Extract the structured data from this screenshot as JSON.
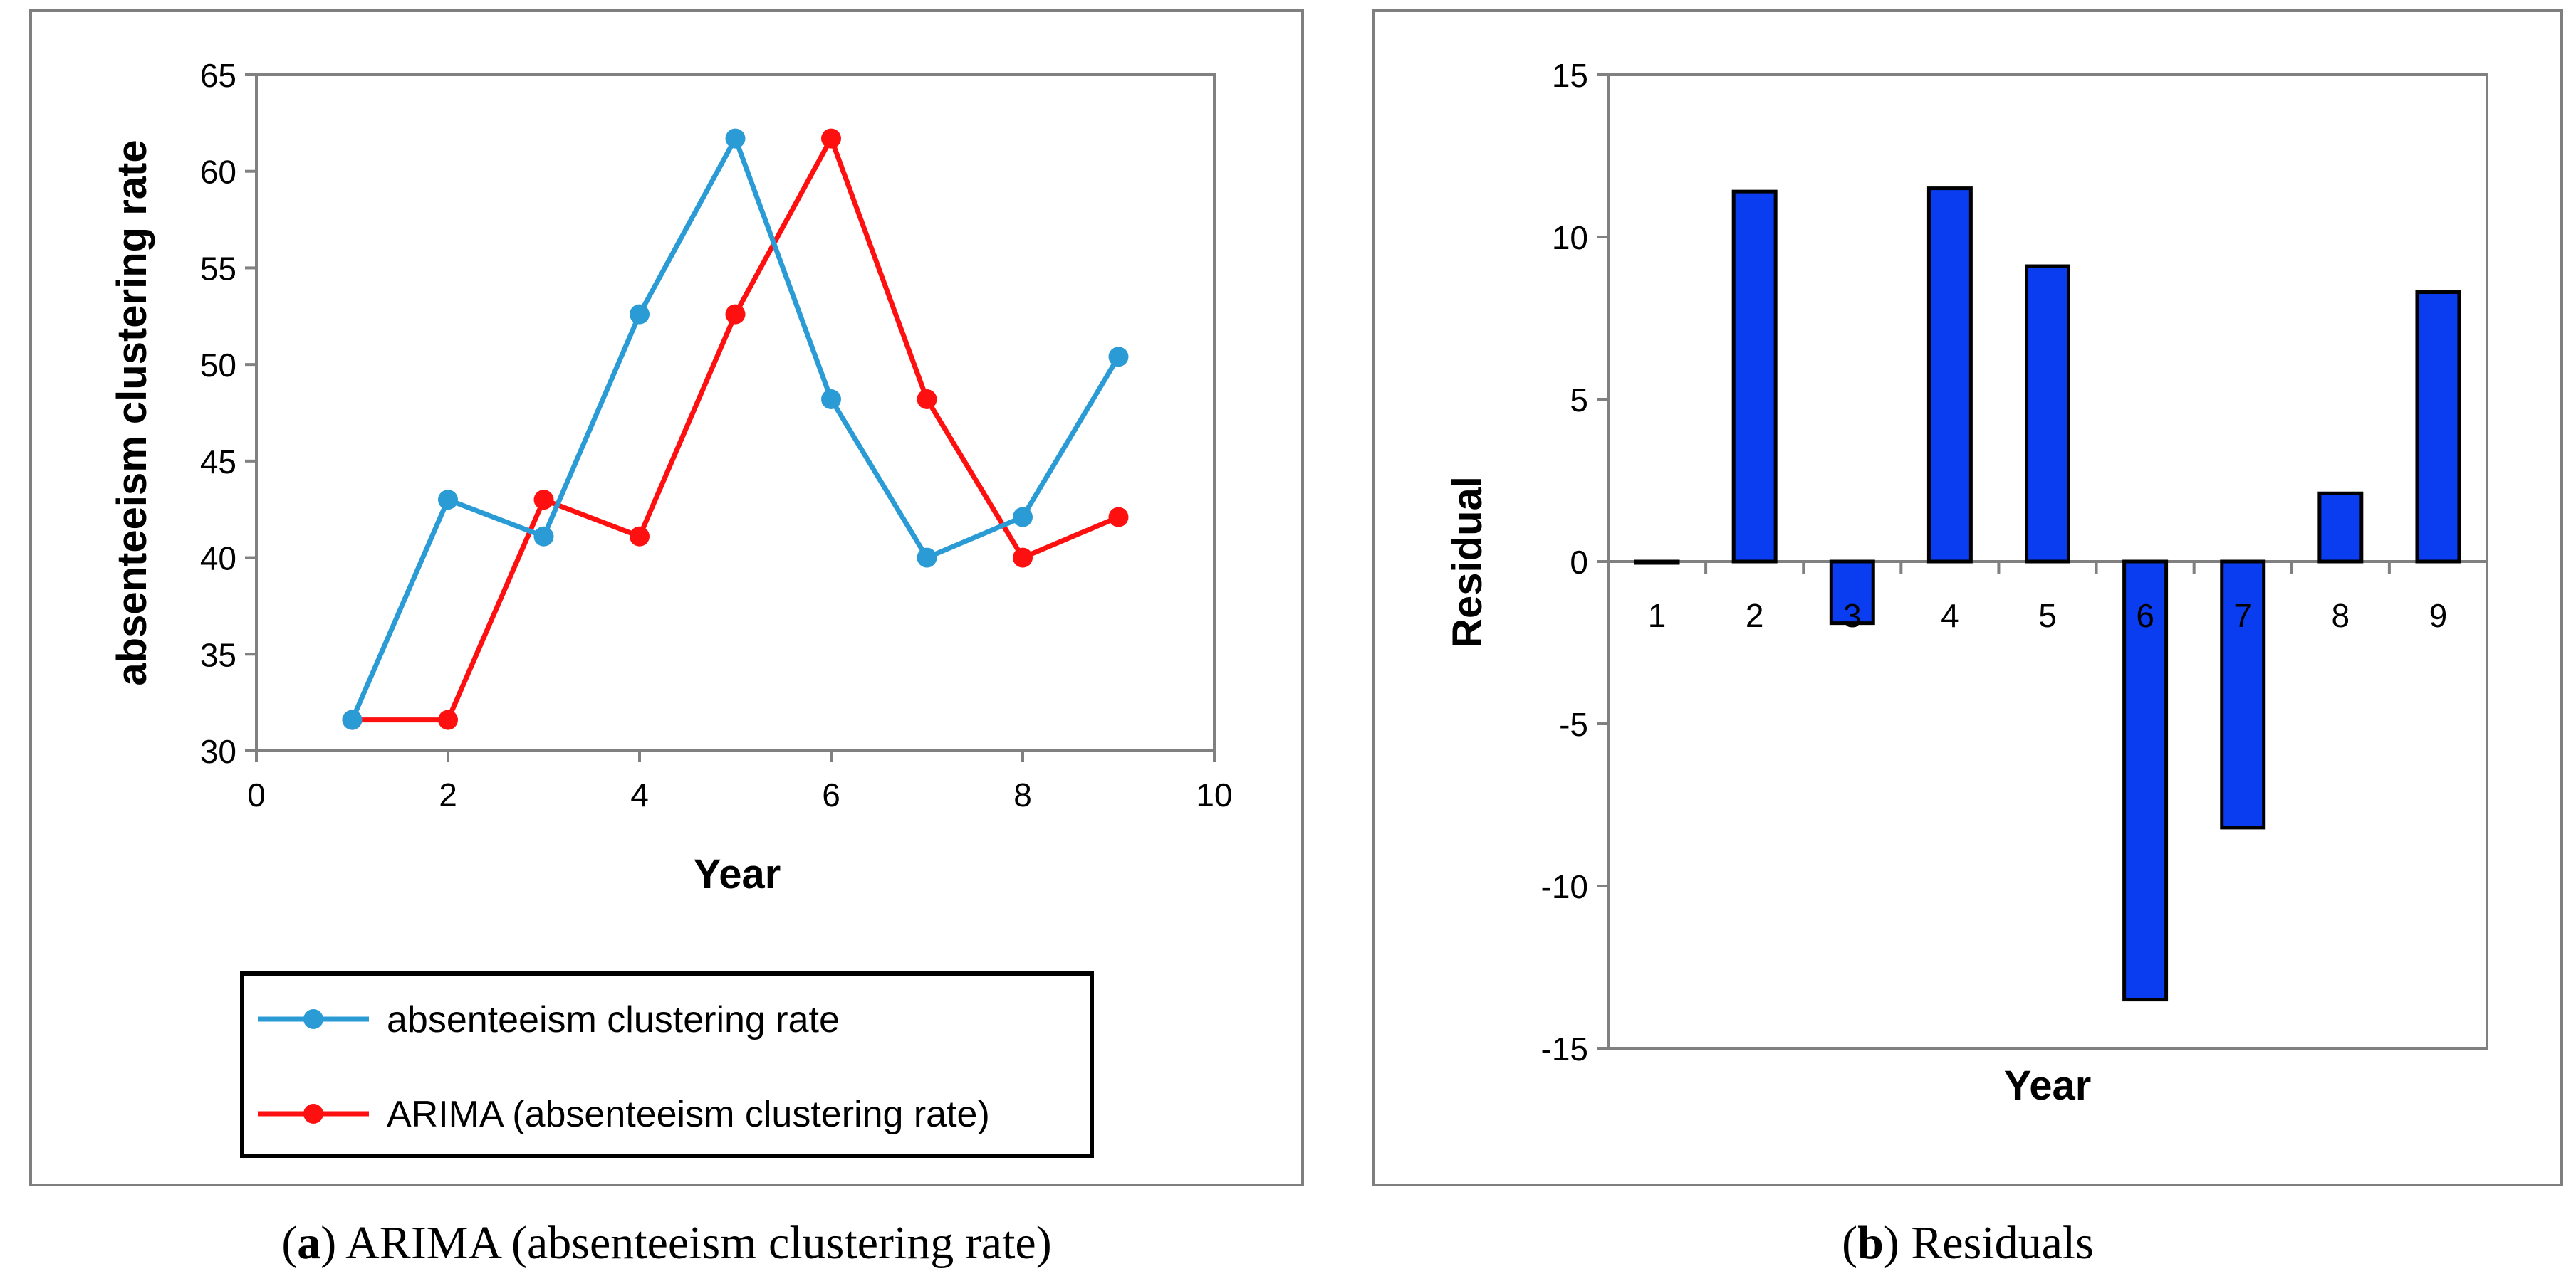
{
  "colors": {
    "series_actual": "#2b9bd6",
    "series_arima": "#ff1010",
    "bars": "#0a3cf0",
    "frame": "#7f7f7f",
    "axis": "#808080",
    "text": "#000000"
  },
  "chart_data": [
    {
      "type": "line",
      "xlabel": "Year",
      "ylabel": "absenteeism clustering rate",
      "xlim": [
        0,
        10
      ],
      "ylim": [
        30,
        65
      ],
      "xticks": [
        0,
        2,
        4,
        6,
        8,
        10
      ],
      "yticks": [
        30,
        35,
        40,
        45,
        50,
        55,
        60,
        65
      ],
      "grid": false,
      "legend_position": "bottom",
      "series": [
        {
          "name": "absenteeism clustering rate",
          "x": [
            1,
            2,
            3,
            4,
            5,
            6,
            7,
            8,
            9
          ],
          "values": [
            31.6,
            43.0,
            41.1,
            52.6,
            61.7,
            48.2,
            40.0,
            42.1,
            50.4
          ]
        },
        {
          "name": "ARIMA (absenteeism clustering rate)",
          "x": [
            1,
            2,
            3,
            4,
            5,
            6,
            7,
            8,
            9
          ],
          "values": [
            31.6,
            31.6,
            43.0,
            41.1,
            52.6,
            61.7,
            48.2,
            40.0,
            42.1
          ]
        }
      ]
    },
    {
      "type": "bar",
      "xlabel": "Year",
      "ylabel": "Residual",
      "categories": [
        "1",
        "2",
        "3",
        "4",
        "5",
        "6",
        "7",
        "8",
        "9"
      ],
      "values": [
        0,
        11.4,
        -1.9,
        11.5,
        9.1,
        -13.5,
        -8.2,
        2.1,
        8.3
      ],
      "ylim": [
        -15,
        15
      ],
      "yticks": [
        -15,
        -10,
        -5,
        0,
        5,
        10,
        15
      ],
      "grid": false
    }
  ],
  "captions": [
    {
      "letter": "a",
      "text": ") ARIMA (absenteeism clustering rate)"
    },
    {
      "letter": "b",
      "text": ") Residuals"
    }
  ]
}
